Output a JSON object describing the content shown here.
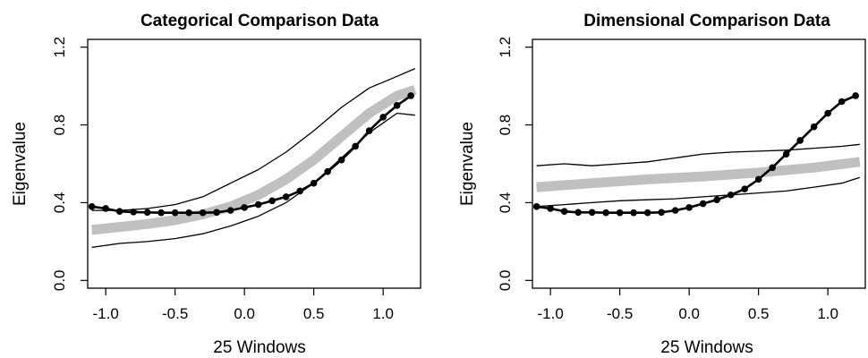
{
  "chart_data": [
    {
      "type": "line",
      "title": "Categorical Comparison Data",
      "xlabel": "25 Windows",
      "ylabel": "Eigenvalue",
      "xlim": [
        -1.13,
        1.27
      ],
      "ylim": [
        -0.04,
        1.24
      ],
      "x_ticks": [
        -1.0,
        -0.5,
        0.0,
        0.5,
        1.0
      ],
      "x_tick_labels": [
        "-1.0",
        "-0.5",
        "0.0",
        "0.5",
        "1.0"
      ],
      "y_ticks": [
        0.0,
        0.4,
        0.8,
        1.2
      ],
      "y_tick_labels": [
        "0.0",
        "0.4",
        "0.8",
        "1.2"
      ],
      "grid": false,
      "series": [
        {
          "role": "observed",
          "color": "#000000",
          "markers": true,
          "x": [
            -1.1,
            -1.0,
            -0.9,
            -0.8,
            -0.7,
            -0.6,
            -0.5,
            -0.4,
            -0.3,
            -0.2,
            -0.1,
            0.0,
            0.1,
            0.2,
            0.3,
            0.4,
            0.5,
            0.6,
            0.7,
            0.8,
            0.9,
            1.0,
            1.1,
            1.2
          ],
          "y": [
            0.38,
            0.37,
            0.355,
            0.352,
            0.35,
            0.348,
            0.348,
            0.348,
            0.348,
            0.35,
            0.36,
            0.375,
            0.39,
            0.41,
            0.43,
            0.46,
            0.5,
            0.56,
            0.62,
            0.69,
            0.77,
            0.84,
            0.9,
            0.95
          ]
        },
        {
          "role": "comparison-mean",
          "color": "#c0c0c0",
          "markers": false,
          "x": [
            -1.1,
            -0.9,
            -0.7,
            -0.5,
            -0.3,
            -0.1,
            0.1,
            0.3,
            0.5,
            0.7,
            0.9,
            1.1,
            1.23
          ],
          "y": [
            0.26,
            0.275,
            0.29,
            0.31,
            0.34,
            0.38,
            0.44,
            0.52,
            0.62,
            0.74,
            0.86,
            0.95,
            0.98
          ]
        },
        {
          "role": "comparison-upper",
          "color": "#000000",
          "markers": false,
          "x": [
            -1.1,
            -0.9,
            -0.7,
            -0.5,
            -0.3,
            -0.1,
            0.1,
            0.3,
            0.5,
            0.7,
            0.9,
            1.1,
            1.23
          ],
          "y": [
            0.36,
            0.36,
            0.37,
            0.39,
            0.43,
            0.5,
            0.57,
            0.66,
            0.77,
            0.89,
            0.99,
            1.05,
            1.09
          ]
        },
        {
          "role": "comparison-lower",
          "color": "#000000",
          "markers": false,
          "x": [
            -1.1,
            -0.9,
            -0.7,
            -0.5,
            -0.3,
            -0.1,
            0.1,
            0.3,
            0.5,
            0.7,
            0.9,
            1.1,
            1.23
          ],
          "y": [
            0.17,
            0.19,
            0.2,
            0.215,
            0.24,
            0.28,
            0.33,
            0.4,
            0.5,
            0.63,
            0.76,
            0.86,
            0.85
          ]
        }
      ]
    },
    {
      "type": "line",
      "title": "Dimensional Comparison Data",
      "xlabel": "25 Windows",
      "ylabel": "Eigenvalue",
      "xlim": [
        -1.13,
        1.27
      ],
      "ylim": [
        -0.04,
        1.24
      ],
      "x_ticks": [
        -1.0,
        -0.5,
        0.0,
        0.5,
        1.0
      ],
      "x_tick_labels": [
        "-1.0",
        "-0.5",
        "0.0",
        "0.5",
        "1.0"
      ],
      "y_ticks": [
        0.0,
        0.4,
        0.8,
        1.2
      ],
      "y_tick_labels": [
        "0.0",
        "0.4",
        "0.8",
        "1.2"
      ],
      "grid": false,
      "series": [
        {
          "role": "observed",
          "color": "#000000",
          "markers": true,
          "x": [
            -1.1,
            -1.0,
            -0.9,
            -0.8,
            -0.7,
            -0.6,
            -0.5,
            -0.4,
            -0.3,
            -0.2,
            -0.1,
            0.0,
            0.1,
            0.2,
            0.3,
            0.4,
            0.5,
            0.6,
            0.7,
            0.8,
            0.9,
            1.0,
            1.1,
            1.2
          ],
          "y": [
            0.38,
            0.37,
            0.355,
            0.35,
            0.35,
            0.348,
            0.348,
            0.348,
            0.348,
            0.35,
            0.36,
            0.375,
            0.395,
            0.415,
            0.44,
            0.47,
            0.52,
            0.58,
            0.65,
            0.72,
            0.79,
            0.86,
            0.92,
            0.95
          ]
        },
        {
          "role": "comparison-mean",
          "color": "#c0c0c0",
          "markers": false,
          "x": [
            -1.1,
            -0.7,
            -0.3,
            0.1,
            0.5,
            0.9,
            1.23
          ],
          "y": [
            0.48,
            0.5,
            0.52,
            0.535,
            0.555,
            0.58,
            0.61
          ]
        },
        {
          "role": "comparison-upper",
          "color": "#000000",
          "markers": false,
          "x": [
            -1.1,
            -0.9,
            -0.7,
            -0.5,
            -0.3,
            -0.1,
            0.1,
            0.3,
            0.5,
            0.7,
            0.9,
            1.1,
            1.23
          ],
          "y": [
            0.59,
            0.6,
            0.59,
            0.6,
            0.61,
            0.63,
            0.65,
            0.66,
            0.665,
            0.67,
            0.68,
            0.69,
            0.7
          ]
        },
        {
          "role": "comparison-lower",
          "color": "#000000",
          "markers": false,
          "x": [
            -1.1,
            -0.9,
            -0.7,
            -0.5,
            -0.3,
            -0.1,
            0.1,
            0.3,
            0.5,
            0.7,
            0.9,
            1.1,
            1.23
          ],
          "y": [
            0.38,
            0.39,
            0.4,
            0.41,
            0.415,
            0.42,
            0.43,
            0.44,
            0.45,
            0.46,
            0.48,
            0.5,
            0.53
          ]
        }
      ]
    }
  ]
}
